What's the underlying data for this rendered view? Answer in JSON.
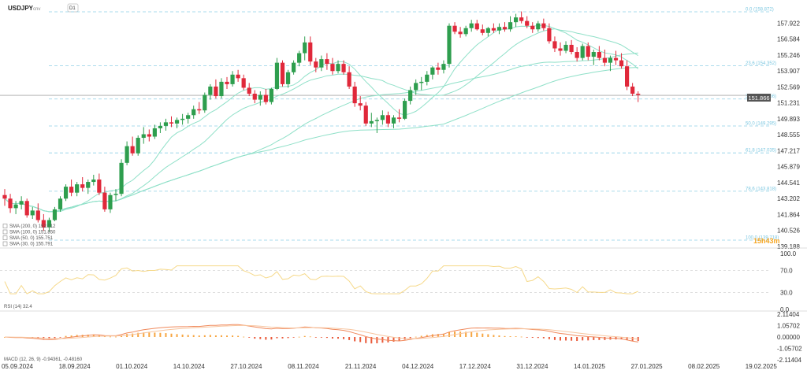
{
  "header": {
    "symbol": "USDJPY",
    "symbol_suffix": "cnv",
    "timeframe": "D1"
  },
  "colors": {
    "up": "#2e9e4e",
    "down": "#e0283a",
    "sma": "#8fe0c8",
    "fib": "#8fcfe6",
    "rsi": "#f6d98a",
    "macd_line": "#f08a5d",
    "macd_signal": "#f7c59f",
    "macd_hist_up": "#f7a540",
    "macd_hist_down": "#ea5a3a",
    "price_badge": "#555555",
    "countdown": "#f5a623"
  },
  "chart_data": {
    "type": "candlestick",
    "ylim": [
      139.188,
      159.2
    ],
    "y_ticks": [
      "157.922",
      "156.584",
      "155.246",
      "153.907",
      "152.569",
      "151.231",
      "149.893",
      "148.555",
      "147.217",
      "145.879",
      "144.541",
      "143.202",
      "141.864",
      "140.526",
      "139.188"
    ],
    "x_ticks": [
      "05.09.2024",
      "18.09.2024",
      "01.10.2024",
      "14.10.2024",
      "27.10.2024",
      "08.11.2024",
      "21.11.2024",
      "04.12.2024",
      "17.12.2024",
      "31.12.2024",
      "14.01.2025",
      "27.01.2025",
      "08.02.2025",
      "19.02.2025"
    ],
    "last_price": "151.866",
    "countdown": "15h43m",
    "fib_levels": [
      {
        "label": "0.0 (158.872)",
        "price": 158.872
      },
      {
        "label": "23.6 (154.352)",
        "price": 154.352
      },
      {
        "label": "38.2 (151.556)",
        "price": 151.556
      },
      {
        "label": "50.0 (149.295)",
        "price": 149.295
      },
      {
        "label": "61.8 (147.035)",
        "price": 147.035
      },
      {
        "label": "78.6 (143.818)",
        "price": 143.818
      },
      {
        "label": "100.0 (139.718)",
        "price": 139.718
      }
    ],
    "legend": [
      "SMA (200, 0) 152.012",
      "SMA (100, 0) 151.850",
      "SMA (50, 0) 155.751",
      "SMA (30, 0) 155.791"
    ],
    "rsi": {
      "label": "RSI (14) 32.4",
      "ticks": [
        "100.0",
        "70.0",
        "30.0",
        "0.0"
      ],
      "ylim": [
        0,
        100
      ],
      "last": 32.4
    },
    "macd": {
      "label": "MACD (12, 26, 9) -0.94361, -0.48160",
      "ticks": [
        "2.11404",
        "1.05702",
        "0.00000",
        "-1.05702",
        "-2.11404"
      ],
      "ylim": [
        -2.11404,
        2.11404
      ]
    },
    "candles": [
      [
        143.5,
        144.0,
        142.6,
        143.2
      ],
      [
        143.2,
        143.6,
        142.0,
        142.4
      ],
      [
        142.4,
        143.0,
        141.9,
        142.7
      ],
      [
        142.7,
        143.4,
        142.3,
        143.0
      ],
      [
        143.0,
        143.2,
        141.6,
        141.8
      ],
      [
        141.8,
        142.5,
        141.5,
        142.2
      ],
      [
        142.2,
        142.8,
        141.2,
        141.4
      ],
      [
        141.4,
        141.9,
        140.5,
        140.8
      ],
      [
        140.8,
        141.6,
        140.4,
        141.4
      ],
      [
        141.4,
        142.5,
        141.3,
        142.3
      ],
      [
        142.3,
        143.4,
        142.1,
        143.2
      ],
      [
        143.2,
        144.4,
        143.0,
        144.2
      ],
      [
        144.2,
        144.8,
        143.4,
        143.7
      ],
      [
        143.7,
        144.6,
        143.4,
        144.4
      ],
      [
        144.4,
        145.0,
        143.8,
        144.1
      ],
      [
        144.1,
        144.8,
        143.6,
        144.6
      ],
      [
        144.6,
        145.2,
        144.3,
        144.8
      ],
      [
        144.8,
        145.3,
        143.5,
        143.7
      ],
      [
        143.7,
        144.2,
        142.1,
        142.3
      ],
      [
        142.3,
        143.7,
        142.0,
        143.5
      ],
      [
        143.5,
        144.0,
        143.0,
        143.6
      ],
      [
        143.6,
        146.5,
        143.4,
        146.2
      ],
      [
        146.2,
        148.0,
        146.0,
        147.6
      ],
      [
        147.6,
        148.4,
        146.8,
        147.0
      ],
      [
        147.0,
        148.5,
        146.8,
        148.3
      ],
      [
        148.3,
        149.2,
        147.8,
        148.6
      ],
      [
        148.6,
        149.0,
        148.0,
        148.4
      ],
      [
        148.4,
        149.4,
        148.2,
        149.1
      ],
      [
        149.1,
        149.6,
        148.7,
        149.3
      ],
      [
        149.3,
        149.9,
        148.9,
        149.6
      ],
      [
        149.6,
        150.1,
        149.2,
        149.5
      ],
      [
        149.5,
        150.0,
        149.1,
        149.8
      ],
      [
        149.8,
        150.3,
        149.4,
        149.9
      ],
      [
        149.9,
        150.4,
        149.5,
        150.2
      ],
      [
        150.2,
        151.0,
        149.9,
        150.7
      ],
      [
        150.7,
        151.3,
        150.3,
        150.6
      ],
      [
        150.6,
        152.1,
        150.4,
        151.9
      ],
      [
        151.9,
        152.8,
        151.5,
        152.6
      ],
      [
        152.6,
        153.2,
        151.6,
        151.8
      ],
      [
        151.8,
        153.3,
        151.6,
        153.0
      ],
      [
        153.0,
        153.4,
        152.4,
        152.8
      ],
      [
        152.8,
        153.9,
        152.6,
        153.6
      ],
      [
        153.6,
        154.0,
        153.0,
        153.3
      ],
      [
        153.3,
        153.6,
        152.3,
        152.5
      ],
      [
        152.5,
        152.9,
        151.8,
        152.0
      ],
      [
        152.0,
        152.3,
        151.2,
        151.5
      ],
      [
        151.5,
        152.2,
        151.0,
        151.9
      ],
      [
        151.9,
        152.4,
        151.1,
        151.3
      ],
      [
        151.3,
        152.5,
        151.1,
        152.4
      ],
      [
        152.4,
        155.0,
        152.3,
        154.6
      ],
      [
        154.6,
        154.8,
        152.6,
        152.8
      ],
      [
        152.8,
        154.0,
        152.5,
        153.8
      ],
      [
        153.8,
        154.8,
        153.6,
        154.6
      ],
      [
        154.6,
        155.6,
        154.3,
        155.4
      ],
      [
        155.4,
        156.8,
        154.8,
        156.3
      ],
      [
        156.3,
        156.8,
        154.4,
        154.7
      ],
      [
        154.7,
        155.0,
        153.8,
        154.2
      ],
      [
        154.2,
        155.2,
        153.9,
        154.9
      ],
      [
        154.9,
        155.4,
        154.0,
        154.5
      ],
      [
        154.5,
        155.0,
        153.6,
        153.9
      ],
      [
        153.9,
        154.8,
        153.7,
        154.5
      ],
      [
        154.5,
        154.8,
        153.6,
        153.8
      ],
      [
        153.8,
        154.3,
        152.4,
        152.6
      ],
      [
        152.6,
        153.0,
        150.9,
        151.2
      ],
      [
        151.2,
        151.8,
        150.6,
        151.0
      ],
      [
        151.0,
        151.3,
        149.3,
        149.5
      ],
      [
        149.5,
        150.4,
        149.2,
        149.7
      ],
      [
        149.7,
        150.0,
        148.7,
        149.8
      ],
      [
        149.8,
        150.6,
        149.4,
        150.2
      ],
      [
        150.2,
        150.5,
        149.2,
        149.5
      ],
      [
        149.5,
        150.2,
        149.1,
        150.0
      ],
      [
        150.0,
        150.7,
        149.6,
        149.9
      ],
      [
        149.9,
        151.6,
        149.8,
        151.4
      ],
      [
        151.4,
        152.6,
        151.1,
        152.3
      ],
      [
        152.3,
        153.2,
        151.9,
        152.9
      ],
      [
        152.9,
        153.4,
        152.3,
        153.0
      ],
      [
        153.0,
        153.9,
        152.7,
        153.6
      ],
      [
        153.6,
        154.3,
        153.2,
        154.2
      ],
      [
        154.2,
        154.6,
        153.6,
        154.0
      ],
      [
        154.0,
        154.8,
        153.7,
        154.5
      ],
      [
        154.5,
        157.9,
        154.2,
        157.7
      ],
      [
        157.7,
        158.0,
        157.0,
        157.2
      ],
      [
        157.2,
        157.6,
        156.7,
        157.0
      ],
      [
        157.0,
        157.7,
        156.8,
        157.5
      ],
      [
        157.5,
        158.2,
        157.2,
        157.9
      ],
      [
        157.9,
        158.2,
        157.3,
        157.4
      ],
      [
        157.4,
        157.8,
        156.9,
        157.1
      ],
      [
        157.1,
        157.6,
        156.8,
        157.5
      ],
      [
        157.5,
        157.9,
        157.1,
        157.3
      ],
      [
        157.3,
        157.9,
        157.0,
        157.6
      ],
      [
        157.6,
        158.0,
        157.2,
        157.4
      ],
      [
        157.4,
        158.5,
        157.2,
        158.0
      ],
      [
        158.0,
        158.7,
        157.6,
        158.4
      ],
      [
        158.4,
        158.9,
        157.9,
        158.1
      ],
      [
        158.1,
        158.5,
        157.5,
        157.7
      ],
      [
        157.7,
        158.0,
        157.1,
        157.4
      ],
      [
        157.4,
        158.1,
        157.2,
        157.9
      ],
      [
        157.9,
        158.3,
        157.3,
        157.5
      ],
      [
        157.5,
        157.9,
        156.2,
        156.4
      ],
      [
        156.4,
        156.8,
        155.5,
        155.8
      ],
      [
        155.8,
        156.3,
        155.2,
        155.6
      ],
      [
        155.6,
        156.4,
        155.4,
        156.1
      ],
      [
        156.1,
        156.5,
        155.3,
        155.5
      ],
      [
        155.5,
        155.9,
        154.7,
        155.0
      ],
      [
        155.0,
        156.2,
        154.8,
        156.0
      ],
      [
        156.0,
        156.3,
        154.8,
        155.1
      ],
      [
        155.1,
        155.7,
        154.4,
        155.5
      ],
      [
        155.5,
        156.0,
        154.8,
        155.0
      ],
      [
        155.0,
        155.7,
        154.3,
        154.6
      ],
      [
        154.6,
        155.2,
        153.9,
        155.0
      ],
      [
        155.0,
        155.6,
        154.4,
        154.8
      ],
      [
        154.8,
        155.4,
        154.1,
        154.3
      ],
      [
        154.3,
        154.8,
        152.3,
        152.6
      ],
      [
        152.6,
        152.9,
        151.8,
        152.0
      ],
      [
        152.0,
        152.2,
        151.3,
        151.9
      ]
    ]
  }
}
